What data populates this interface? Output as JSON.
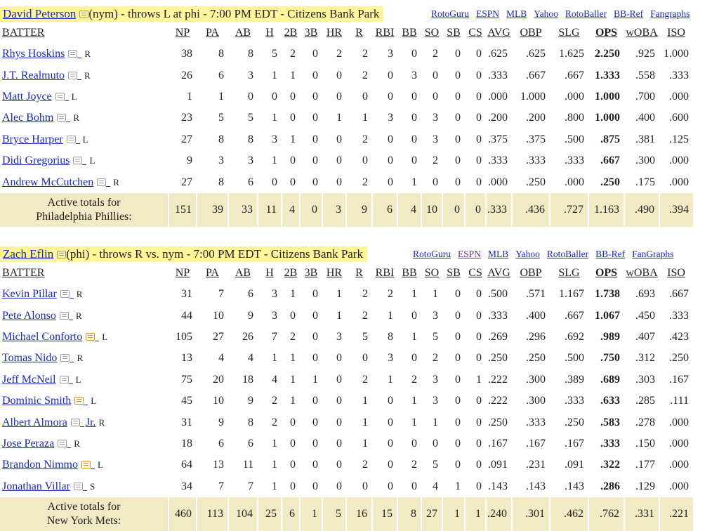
{
  "links": [
    "RotoGuru",
    "ESPN",
    "MLB",
    "Yahoo",
    "RotoBaller",
    "BB-Ref",
    "Fangraphs"
  ],
  "columns": [
    "BATTER",
    "NP",
    "PA",
    "AB",
    "H",
    "2B",
    "3B",
    "HR",
    "R",
    "RBI",
    "BB",
    "SO",
    "SB",
    "CS",
    "AVG",
    "OBP",
    "SLG",
    "OPS",
    "wOBA",
    "ISO"
  ],
  "sections": [
    {
      "pitcher_name": "David Peterson",
      "pitcher_info": "(nym) - throws L at phi - 7:00 PM EDT - Citizens Bank Park",
      "links": [
        "RotoGuru",
        "ESPN",
        "MLB",
        "Yahoo",
        "RotoBaller",
        "BB-Ref",
        "Fangraphs"
      ],
      "batters": [
        {
          "name": "Rhys Hoskins",
          "hand": "R",
          "note": "gray",
          "stats": [
            "38",
            "8",
            "8",
            "5",
            "2",
            "0",
            "2",
            "2",
            "3",
            "0",
            "2",
            "0",
            "0",
            ".625",
            ".625",
            "1.625",
            "2.250",
            ".925",
            "1.000"
          ]
        },
        {
          "name": "J.T. Realmuto",
          "hand": "R",
          "note": "gray",
          "stats": [
            "26",
            "6",
            "3",
            "1",
            "1",
            "0",
            "0",
            "2",
            "0",
            "3",
            "0",
            "0",
            "0",
            ".333",
            ".667",
            ".667",
            "1.333",
            ".558",
            ".333"
          ]
        },
        {
          "name": "Matt Joyce",
          "hand": "L",
          "note": "gray",
          "stats": [
            "1",
            "1",
            "0",
            "0",
            "0",
            "0",
            "0",
            "0",
            "0",
            "0",
            "0",
            "0",
            "0",
            ".000",
            "1.000",
            ".000",
            "1.000",
            ".700",
            ".000"
          ]
        },
        {
          "name": "Alec Bohm",
          "hand": "R",
          "note": "gray",
          "stats": [
            "23",
            "5",
            "5",
            "1",
            "0",
            "0",
            "1",
            "1",
            "3",
            "0",
            "3",
            "0",
            "0",
            ".200",
            ".200",
            ".800",
            "1.000",
            ".400",
            ".600"
          ]
        },
        {
          "name": "Bryce Harper",
          "hand": "L",
          "note": "gray",
          "stats": [
            "27",
            "8",
            "8",
            "3",
            "1",
            "0",
            "0",
            "2",
            "0",
            "0",
            "3",
            "0",
            "0",
            ".375",
            ".375",
            ".500",
            ".875",
            ".381",
            ".125"
          ]
        },
        {
          "name": "Didi Gregorius",
          "hand": "L",
          "note": "gray",
          "stats": [
            "9",
            "3",
            "3",
            "1",
            "0",
            "0",
            "0",
            "0",
            "0",
            "0",
            "2",
            "0",
            "0",
            ".333",
            ".333",
            ".333",
            ".667",
            ".300",
            ".000"
          ]
        },
        {
          "name": "Andrew McCutchen",
          "hand": "R",
          "note": "gray",
          "stats": [
            "27",
            "8",
            "6",
            "0",
            "0",
            "0",
            "0",
            "2",
            "0",
            "1",
            "0",
            "0",
            "0",
            ".000",
            ".250",
            ".000",
            ".250",
            ".175",
            ".000"
          ]
        }
      ],
      "totals_label_1": "Active totals for",
      "totals_label_2": "Philadelphia Phillies:",
      "totals": [
        "151",
        "39",
        "33",
        "11",
        "4",
        "0",
        "3",
        "9",
        "6",
        "4",
        "10",
        "0",
        "0",
        ".333",
        ".436",
        ".727",
        "1.163",
        ".490",
        ".394"
      ]
    },
    {
      "pitcher_name": "Zach Eflin",
      "pitcher_info": "(phi) - throws R vs. nym - 7:00 PM EDT - Citizens Bank Park",
      "links": [
        "RotoGuru",
        "ESPN",
        "MLB",
        "Yahoo",
        "RotoBaller",
        "BB-Ref",
        "FanGraphs"
      ],
      "batters": [
        {
          "name": "Kevin Pillar",
          "hand": "R",
          "note": "gray",
          "stats": [
            "31",
            "7",
            "6",
            "3",
            "1",
            "0",
            "1",
            "2",
            "2",
            "1",
            "1",
            "0",
            "0",
            ".500",
            ".571",
            "1.167",
            "1.738",
            ".693",
            ".667"
          ]
        },
        {
          "name": "Pete Alonso",
          "hand": "R",
          "note": "gray",
          "stats": [
            "44",
            "10",
            "9",
            "3",
            "0",
            "0",
            "1",
            "2",
            "1",
            "0",
            "3",
            "0",
            "0",
            ".333",
            ".400",
            ".667",
            "1.067",
            ".450",
            ".333"
          ]
        },
        {
          "name": "Michael Conforto",
          "hand": "L",
          "note": "orange",
          "stats": [
            "105",
            "27",
            "26",
            "7",
            "2",
            "0",
            "3",
            "5",
            "8",
            "1",
            "5",
            "0",
            "0",
            ".269",
            ".296",
            ".692",
            ".989",
            ".407",
            ".423"
          ]
        },
        {
          "name": "Tomas Nido",
          "hand": "R",
          "note": "gray",
          "stats": [
            "13",
            "4",
            "4",
            "1",
            "1",
            "0",
            "0",
            "0",
            "3",
            "0",
            "2",
            "0",
            "0",
            ".250",
            ".250",
            ".500",
            ".750",
            ".312",
            ".250"
          ]
        },
        {
          "name": "Jeff McNeil",
          "hand": "L",
          "note": "gray",
          "stats": [
            "75",
            "20",
            "18",
            "4",
            "1",
            "1",
            "0",
            "2",
            "1",
            "2",
            "3",
            "0",
            "1",
            ".222",
            ".300",
            ".389",
            ".689",
            ".303",
            ".167"
          ]
        },
        {
          "name": "Dominic Smith",
          "hand": "L",
          "note": "orange",
          "stats": [
            "45",
            "10",
            "9",
            "2",
            "1",
            "0",
            "0",
            "1",
            "0",
            "1",
            "3",
            "0",
            "0",
            ".222",
            ".300",
            ".333",
            ".633",
            ".285",
            ".111"
          ]
        },
        {
          "name": "Albert Almora",
          "suffix": "Jr.",
          "hand": "R",
          "note": "gray",
          "stats": [
            "31",
            "9",
            "8",
            "2",
            "0",
            "0",
            "0",
            "1",
            "0",
            "1",
            "1",
            "0",
            "0",
            ".250",
            ".333",
            ".250",
            ".583",
            ".278",
            ".000"
          ]
        },
        {
          "name": "Jose Peraza",
          "hand": "R",
          "note": "gray",
          "stats": [
            "18",
            "6",
            "6",
            "1",
            "0",
            "0",
            "0",
            "1",
            "0",
            "0",
            "0",
            "0",
            "0",
            ".167",
            ".167",
            ".167",
            ".333",
            ".150",
            ".000"
          ]
        },
        {
          "name": "Brandon Nimmo",
          "hand": "L",
          "note": "orange",
          "stats": [
            "64",
            "13",
            "11",
            "1",
            "0",
            "0",
            "0",
            "2",
            "0",
            "2",
            "5",
            "0",
            "0",
            ".091",
            ".231",
            ".091",
            ".322",
            ".177",
            ".000"
          ]
        },
        {
          "name": "Jonathan Villar",
          "hand": "S",
          "note": "gray",
          "stats": [
            "34",
            "7",
            "7",
            "1",
            "0",
            "0",
            "0",
            "0",
            "0",
            "0",
            "4",
            "1",
            "0",
            ".143",
            ".143",
            ".143",
            ".286",
            ".129",
            ".000"
          ]
        }
      ],
      "totals_label_1": "Active totals for",
      "totals_label_2": "New York Mets:",
      "totals": [
        "460",
        "113",
        "104",
        "25",
        "6",
        "1",
        "5",
        "16",
        "15",
        "8",
        "27",
        "1",
        "1",
        ".240",
        ".301",
        ".462",
        ".762",
        ".331",
        ".221"
      ]
    }
  ]
}
